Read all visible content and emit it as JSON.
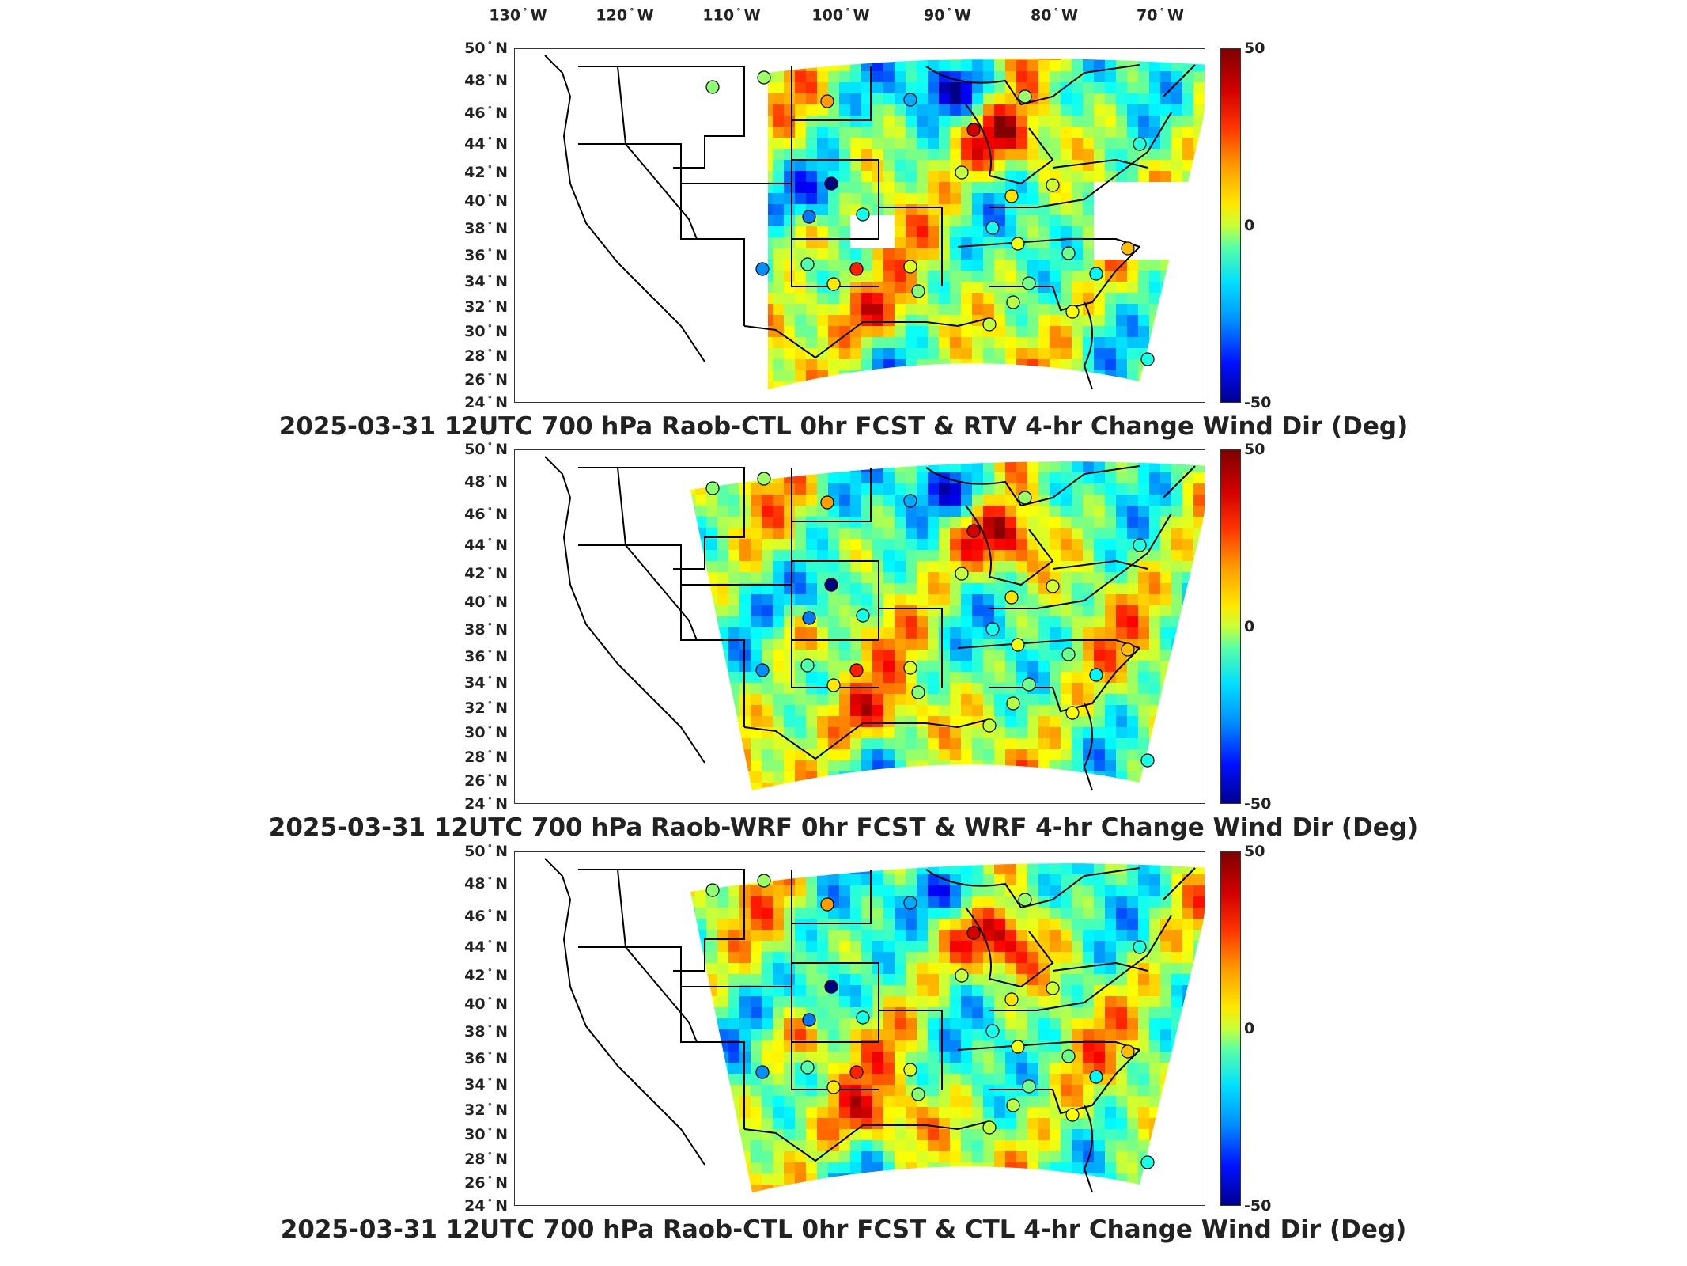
{
  "longitude_labels": [
    "130",
    "120",
    "110",
    "100",
    "90",
    "80",
    "70"
  ],
  "lon_suffix": "W",
  "latitude_labels": [
    "50",
    "48",
    "46",
    "44",
    "42",
    "40",
    "38",
    "36",
    "34",
    "32",
    "30",
    "28",
    "26",
    "24"
  ],
  "lat_suffix": "N",
  "panels": [
    {
      "title": "2025-03-31 12UTC 700 hPa Raob-CTL 0hr FCST & RTV 4-hr Change Wind Dir (Deg)",
      "colorbar": {
        "max": "50",
        "mid": "0",
        "min": "-50"
      }
    },
    {
      "title": "2025-03-31 12UTC 700 hPa Raob-WRF 0hr FCST & WRF 4-hr Change Wind Dir (Deg)",
      "colorbar": {
        "max": "50",
        "mid": "0",
        "min": "-50"
      }
    },
    {
      "title": "2025-03-31 12UTC 700 hPa Raob-CTL 0hr FCST & CTL 4-hr Change Wind Dir (Deg)",
      "colorbar": {
        "max": "50",
        "mid": "0",
        "min": "-50"
      }
    }
  ],
  "colormap": {
    "scale": "jet",
    "min": -50,
    "max": 50
  }
}
